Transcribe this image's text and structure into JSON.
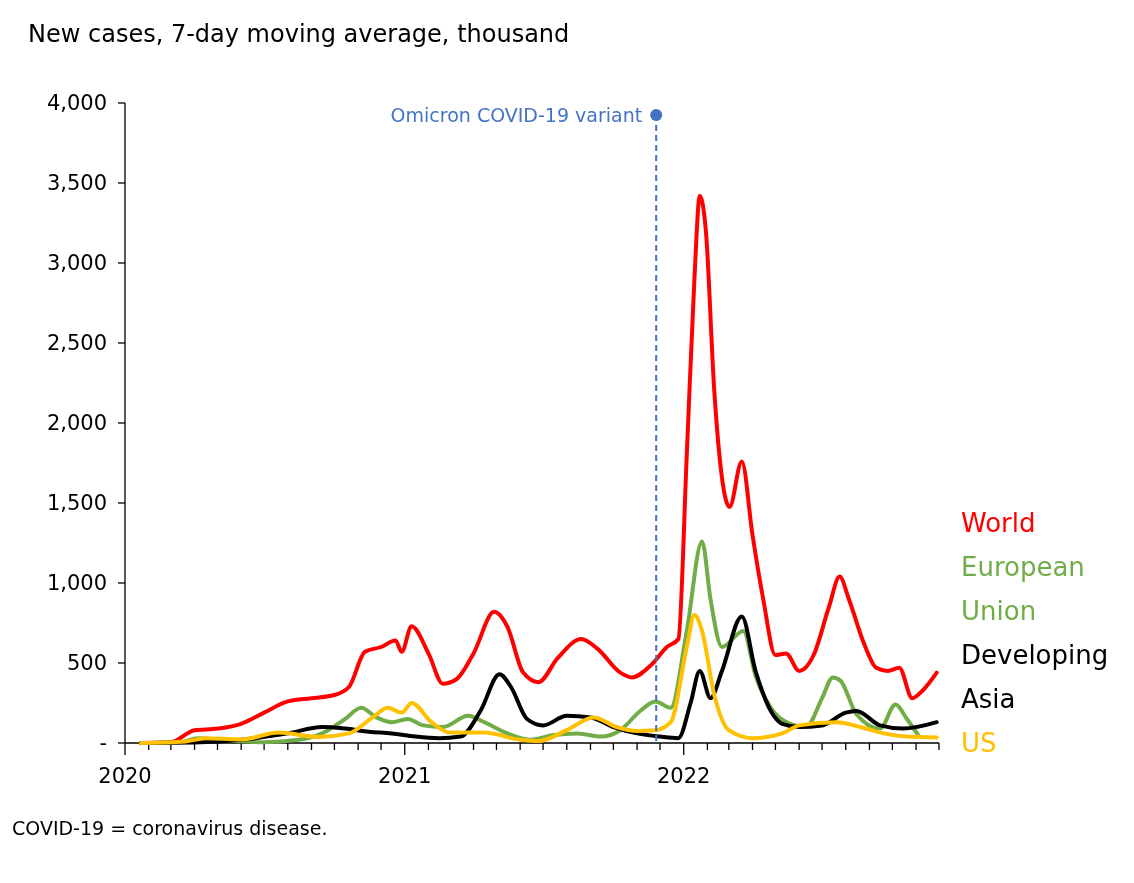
{
  "chart_data": {
    "type": "line",
    "title": "New cases, 7-day moving average, thousand",
    "annotations": [
      "COVID-19 = coronavirus disease."
    ],
    "xlim": [
      "2020-01-01",
      "2022-12-01"
    ],
    "xticks": [
      {
        "value": "2020-01-01",
        "label": "2020"
      },
      {
        "value": "2020-02-01",
        "label": null
      },
      {
        "value": "2020-03-01",
        "label": null
      },
      {
        "value": "2020-04-01",
        "label": null
      },
      {
        "value": "2020-05-01",
        "label": null
      },
      {
        "value": "2020-06-01",
        "label": null
      },
      {
        "value": "2020-07-01",
        "label": null
      },
      {
        "value": "2020-08-01",
        "label": null
      },
      {
        "value": "2020-09-01",
        "label": null
      },
      {
        "value": "2020-10-01",
        "label": null
      },
      {
        "value": "2020-11-01",
        "label": null
      },
      {
        "value": "2020-12-01",
        "label": null
      },
      {
        "value": "2021-01-01",
        "label": "2021"
      },
      {
        "value": "2021-02-01",
        "label": null
      },
      {
        "value": "2021-03-01",
        "label": null
      },
      {
        "value": "2021-04-01",
        "label": null
      },
      {
        "value": "2021-05-01",
        "label": null
      },
      {
        "value": "2021-06-01",
        "label": null
      },
      {
        "value": "2021-07-01",
        "label": null
      },
      {
        "value": "2021-08-01",
        "label": null
      },
      {
        "value": "2021-09-01",
        "label": null
      },
      {
        "value": "2021-10-01",
        "label": null
      },
      {
        "value": "2021-11-01",
        "label": null
      },
      {
        "value": "2021-12-01",
        "label": null
      },
      {
        "value": "2022-01-01",
        "label": "2022"
      },
      {
        "value": "2022-02-01",
        "label": null
      },
      {
        "value": "2022-03-01",
        "label": null
      },
      {
        "value": "2022-04-01",
        "label": null
      },
      {
        "value": "2022-05-01",
        "label": null
      },
      {
        "value": "2022-06-01",
        "label": null
      },
      {
        "value": "2022-07-01",
        "label": null
      },
      {
        "value": "2022-08-01",
        "label": null
      },
      {
        "value": "2022-09-01",
        "label": null
      },
      {
        "value": "2022-10-01",
        "label": null
      },
      {
        "value": "2022-11-01",
        "label": null
      },
      {
        "value": "2022-12-01",
        "label": null
      }
    ],
    "ylim": [
      0,
      4000
    ],
    "yticks": [
      {
        "value": 0,
        "label": "-"
      },
      {
        "value": 500,
        "label": "500"
      },
      {
        "value": 1000,
        "label": "1,000"
      },
      {
        "value": 1500,
        "label": "1,500"
      },
      {
        "value": 2000,
        "label": "2,000"
      },
      {
        "value": 2500,
        "label": "2,500"
      },
      {
        "value": 3000,
        "label": "3,000"
      },
      {
        "value": 3500,
        "label": "3,500"
      },
      {
        "value": 4000,
        "label": "4,000"
      }
    ],
    "grid": false,
    "legend": false,
    "marker": "none",
    "line_style": "solid",
    "ref_lines": [
      {
        "axis": "x",
        "value": "2021-11-26",
        "label": "Omicron COVID-19 variant",
        "color": "#4472c4",
        "line_style": "dashed"
      }
    ],
    "series": [
      {
        "name": "World",
        "color": "#ff0000",
        "x": [
          "2020-01-22",
          "2020-03-01",
          "2020-04-01",
          "2020-05-01",
          "2020-06-01",
          "2020-07-01",
          "2020-08-01",
          "2020-09-01",
          "2020-10-01",
          "2020-10-20",
          "2020-11-10",
          "2020-12-01",
          "2020-12-20",
          "2020-12-28",
          "2021-01-10",
          "2021-02-01",
          "2021-02-20",
          "2021-03-10",
          "2021-04-01",
          "2021-04-28",
          "2021-05-15",
          "2021-06-05",
          "2021-06-25",
          "2021-07-20",
          "2021-08-20",
          "2021-09-10",
          "2021-10-10",
          "2021-10-25",
          "2021-11-20",
          "2021-12-10",
          "2021-12-25",
          "2022-01-05",
          "2022-01-15",
          "2022-01-22",
          "2022-01-30",
          "2022-02-10",
          "2022-03-02",
          "2022-03-18",
          "2022-04-01",
          "2022-04-15",
          "2022-05-01",
          "2022-05-15",
          "2022-06-01",
          "2022-06-20",
          "2022-07-10",
          "2022-07-24",
          "2022-08-05",
          "2022-08-25",
          "2022-09-10",
          "2022-09-25",
          "2022-10-10",
          "2022-10-27",
          "2022-11-10",
          "2022-11-28"
        ],
        "values": [
          0,
          5,
          80,
          90,
          120,
          190,
          260,
          280,
          300,
          350,
          570,
          600,
          640,
          570,
          730,
          560,
          370,
          400,
          560,
          820,
          730,
          440,
          380,
          530,
          650,
          590,
          440,
          410,
          490,
          600,
          650,
          1800,
          2900,
          3420,
          3200,
          2200,
          1475,
          1760,
          1300,
          900,
          550,
          560,
          450,
          550,
          850,
          1040,
          900,
          620,
          470,
          450,
          470,
          280,
          330,
          440
        ]
      },
      {
        "name": "European Union",
        "color": "#70ad47",
        "x": [
          "2020-01-22",
          "2020-03-15",
          "2020-04-05",
          "2020-05-15",
          "2020-07-01",
          "2020-08-15",
          "2020-09-15",
          "2020-10-15",
          "2020-11-05",
          "2020-11-25",
          "2020-12-15",
          "2021-01-05",
          "2021-01-25",
          "2021-02-20",
          "2021-03-25",
          "2021-04-15",
          "2021-05-15",
          "2021-06-15",
          "2021-07-15",
          "2021-08-15",
          "2021-09-15",
          "2021-10-10",
          "2021-11-05",
          "2021-11-25",
          "2021-12-15",
          "2022-01-05",
          "2022-01-25",
          "2022-02-05",
          "2022-02-20",
          "2022-03-20",
          "2022-04-05",
          "2022-04-25",
          "2022-05-20",
          "2022-06-10",
          "2022-07-01",
          "2022-07-15",
          "2022-07-25",
          "2022-08-15",
          "2022-09-15",
          "2022-10-05",
          "2022-10-20",
          "2022-11-05"
        ],
        "values": [
          0,
          5,
          30,
          15,
          5,
          20,
          60,
          150,
          220,
          160,
          130,
          150,
          110,
          100,
          170,
          130,
          60,
          20,
          50,
          60,
          40,
          80,
          200,
          260,
          220,
          700,
          1260,
          900,
          600,
          700,
          420,
          220,
          120,
          100,
          280,
          410,
          390,
          180,
          90,
          240,
          150,
          40
        ]
      },
      {
        "name": "Developing Asia",
        "color": "#000000",
        "x": [
          "2020-01-22",
          "2020-04-01",
          "2020-06-01",
          "2020-08-01",
          "2020-09-15",
          "2020-10-15",
          "2020-11-15",
          "2020-12-15",
          "2021-01-15",
          "2021-02-15",
          "2021-03-15",
          "2021-04-10",
          "2021-05-05",
          "2021-05-20",
          "2021-06-10",
          "2021-07-01",
          "2021-08-01",
          "2021-09-01",
          "2021-10-01",
          "2021-11-01",
          "2021-12-01",
          "2021-12-25",
          "2022-01-10",
          "2022-01-22",
          "2022-02-05",
          "2022-02-20",
          "2022-03-18",
          "2022-04-05",
          "2022-04-25",
          "2022-05-10",
          "2022-06-01",
          "2022-07-01",
          "2022-08-01",
          "2022-08-15",
          "2022-09-15",
          "2022-10-15",
          "2022-11-28"
        ],
        "values": [
          0,
          3,
          20,
          60,
          100,
          90,
          70,
          60,
          40,
          30,
          40,
          200,
          430,
          350,
          150,
          110,
          170,
          160,
          100,
          60,
          40,
          30,
          250,
          450,
          280,
          450,
          790,
          450,
          200,
          120,
          100,
          110,
          190,
          200,
          110,
          90,
          130
        ]
      },
      {
        "name": "US",
        "color": "#ffc000",
        "x": [
          "2020-01-22",
          "2020-03-20",
          "2020-04-15",
          "2020-06-01",
          "2020-07-20",
          "2020-09-10",
          "2020-10-20",
          "2020-11-20",
          "2020-12-10",
          "2020-12-28",
          "2021-01-10",
          "2021-02-05",
          "2021-03-01",
          "2021-04-15",
          "2021-06-01",
          "2021-06-25",
          "2021-08-01",
          "2021-09-05",
          "2021-10-05",
          "2021-11-01",
          "2021-11-25",
          "2021-12-15",
          "2022-01-05",
          "2022-01-15",
          "2022-01-25",
          "2022-02-10",
          "2022-03-01",
          "2022-04-01",
          "2022-05-10",
          "2022-06-01",
          "2022-07-20",
          "2022-08-20",
          "2022-09-20",
          "2022-10-20",
          "2022-11-28"
        ],
        "values": [
          0,
          10,
          30,
          22,
          65,
          38,
          60,
          160,
          220,
          190,
          250,
          130,
          65,
          65,
          20,
          12,
          80,
          160,
          100,
          75,
          80,
          130,
          600,
          800,
          700,
          300,
          80,
          30,
          60,
          110,
          130,
          100,
          60,
          40,
          35
        ]
      }
    ]
  }
}
